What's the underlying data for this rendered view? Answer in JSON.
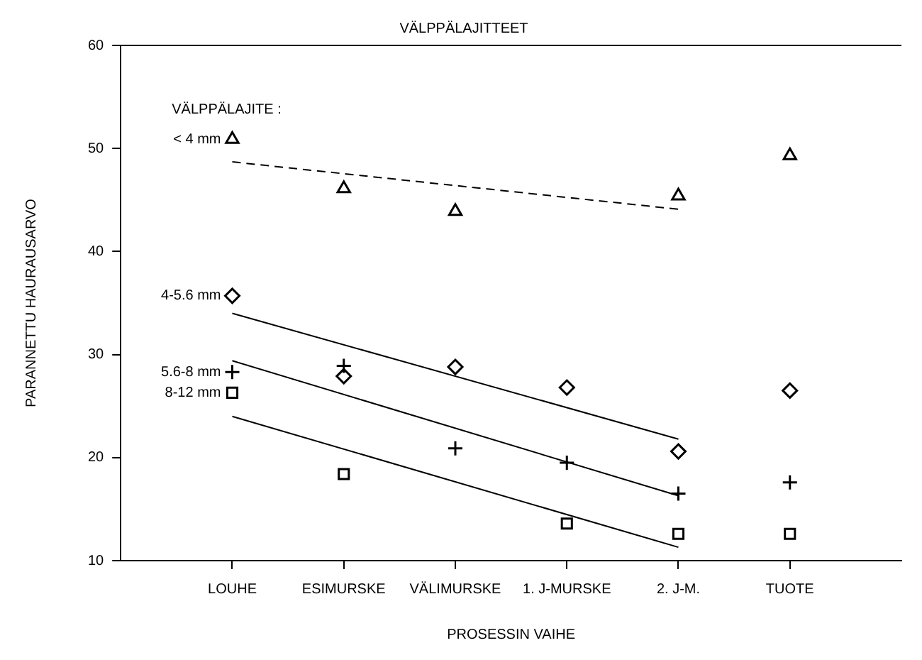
{
  "chart_data": {
    "type": "scatter",
    "title": "VÄLPPÄLAJITTEET",
    "xlabel": "PROSESSIN VAIHE",
    "ylabel": "PARANNETTU HAURAUSARVO",
    "legend_title": "VÄLPPÄLAJITE :",
    "categories": [
      "LOUHE",
      "ESIMURSKE",
      "VÄLIMURSKE",
      "1. J-MURSKE",
      "2. J-M.",
      "TUOTE"
    ],
    "ylim": [
      10,
      60
    ],
    "yticks": [
      10,
      20,
      30,
      40,
      50,
      60
    ],
    "grid": false,
    "legend": false,
    "series": [
      {
        "name": "< 4 mm",
        "color": "#000000",
        "marker": "triangle",
        "values": [
          50.9,
          46.1,
          43.9,
          null,
          45.4,
          49.3
        ]
      },
      {
        "name": "4-5.6 mm",
        "color": "#000000",
        "marker": "diamond",
        "values": [
          35.7,
          27.9,
          28.8,
          26.8,
          20.6,
          26.5
        ]
      },
      {
        "name": "5.6-8 mm",
        "color": "#000000",
        "marker": "cross",
        "values": [
          28.3,
          28.9,
          20.9,
          19.5,
          16.5,
          17.6
        ]
      },
      {
        "name": "8-12 mm",
        "color": "#000000",
        "marker": "square",
        "values": [
          26.3,
          18.4,
          null,
          13.6,
          12.6,
          12.6
        ]
      },
      {
        "type": "line",
        "color": "#000000",
        "line_style": "dashed",
        "marker": "none",
        "x": [
          "LOUHE",
          "2. J-M."
        ],
        "values": [
          48.7,
          44.1
        ]
      },
      {
        "type": "line",
        "color": "#000000",
        "line_style": "solid",
        "marker": "none",
        "x": [
          "LOUHE",
          "2. J-M."
        ],
        "values": [
          34.0,
          21.8
        ]
      },
      {
        "type": "line",
        "color": "#000000",
        "line_style": "solid",
        "marker": "none",
        "x": [
          "LOUHE",
          "2. J-M."
        ],
        "values": [
          29.4,
          16.3
        ]
      },
      {
        "type": "line",
        "color": "#000000",
        "line_style": "solid",
        "marker": "none",
        "x": [
          "LOUHE",
          "2. J-M."
        ],
        "values": [
          24.0,
          11.3
        ]
      }
    ]
  }
}
